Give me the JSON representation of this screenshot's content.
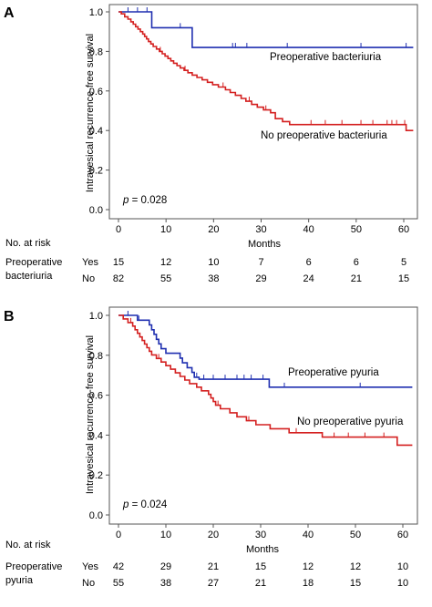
{
  "chart_data": [
    {
      "type": "line",
      "panel_label": "A",
      "ylabel": "Intravesical recurrence-free survival",
      "xlabel": "Months",
      "xlim": [
        0,
        62
      ],
      "ylim": [
        0.0,
        1.05
      ],
      "x_ticks": [
        0,
        10,
        20,
        30,
        40,
        50,
        60
      ],
      "y_ticks": [
        "0.0",
        "0.2",
        "0.4",
        "0.6",
        "0.8",
        "1.0"
      ],
      "grid": false,
      "p_label": "p",
      "p_value": "= 0.028",
      "series": [
        {
          "name": "Preoperative bacteriuria",
          "color": "#1f2fb0",
          "steps": [
            [
              0,
              1.0
            ],
            [
              7,
              0.92
            ],
            [
              15.5,
              0.82
            ],
            [
              62,
              0.82
            ]
          ],
          "censored": [
            [
              2,
              1.0
            ],
            [
              4,
              1.0
            ],
            [
              6,
              1.0
            ],
            [
              13,
              0.92
            ],
            [
              24,
              0.82
            ],
            [
              24.6,
              0.82
            ],
            [
              27,
              0.82
            ],
            [
              35.5,
              0.82
            ],
            [
              51,
              0.82
            ],
            [
              60.5,
              0.82
            ]
          ]
        },
        {
          "name": "No preoperative bacteriuria",
          "color": "#d42020",
          "steps": [
            [
              0,
              1.0
            ],
            [
              0.6,
              0.99
            ],
            [
              1.3,
              0.975
            ],
            [
              2,
              0.963
            ],
            [
              2.6,
              0.95
            ],
            [
              3.1,
              0.938
            ],
            [
              3.6,
              0.925
            ],
            [
              4.1,
              0.913
            ],
            [
              4.6,
              0.9
            ],
            [
              5.1,
              0.888
            ],
            [
              5.5,
              0.875
            ],
            [
              5.9,
              0.863
            ],
            [
              6.3,
              0.85
            ],
            [
              6.8,
              0.838
            ],
            [
              7.3,
              0.825
            ],
            [
              8,
              0.812
            ],
            [
              8.6,
              0.8
            ],
            [
              9.2,
              0.788
            ],
            [
              9.8,
              0.776
            ],
            [
              10.4,
              0.764
            ],
            [
              11,
              0.752
            ],
            [
              11.6,
              0.74
            ],
            [
              12.3,
              0.728
            ],
            [
              13,
              0.716
            ],
            [
              13.8,
              0.704
            ],
            [
              14.6,
              0.692
            ],
            [
              15.5,
              0.68
            ],
            [
              16.5,
              0.668
            ],
            [
              17.6,
              0.656
            ],
            [
              18.7,
              0.644
            ],
            [
              19.8,
              0.632
            ],
            [
              21,
              0.62
            ],
            [
              22.5,
              0.606
            ],
            [
              23.5,
              0.592
            ],
            [
              24.6,
              0.578
            ],
            [
              25.8,
              0.562
            ],
            [
              26.8,
              0.548
            ],
            [
              28,
              0.532
            ],
            [
              29.2,
              0.518
            ],
            [
              30.5,
              0.504
            ],
            [
              32,
              0.49
            ],
            [
              33,
              0.46
            ],
            [
              34.5,
              0.445
            ],
            [
              36,
              0.43
            ],
            [
              60.5,
              0.43
            ],
            [
              60.5,
              0.4
            ],
            [
              62,
              0.4
            ]
          ],
          "censored": [
            [
              8.8,
              0.8
            ],
            [
              14,
              0.704
            ],
            [
              22,
              0.62
            ],
            [
              27.5,
              0.548
            ],
            [
              31,
              0.504
            ],
            [
              40.5,
              0.43
            ],
            [
              43.5,
              0.43
            ],
            [
              47,
              0.43
            ],
            [
              51,
              0.43
            ],
            [
              53.5,
              0.43
            ],
            [
              56.5,
              0.43
            ],
            [
              57.5,
              0.43
            ],
            [
              58.5,
              0.43
            ],
            [
              60.2,
              0.43
            ]
          ]
        }
      ],
      "risk_table": {
        "header": "No. at risk",
        "group_label_lines": [
          "Preoperative",
          "bacteriuria"
        ],
        "rows": [
          {
            "label": "Yes",
            "values": [
              "15",
              "12",
              "10",
              "7",
              "6",
              "6",
              "5"
            ]
          },
          {
            "label": "No",
            "values": [
              "82",
              "55",
              "38",
              "29",
              "24",
              "21",
              "15"
            ]
          }
        ]
      }
    },
    {
      "type": "line",
      "panel_label": "B",
      "ylabel": "Intravesical recurrence-free survival",
      "xlabel": "Months",
      "xlim": [
        0,
        62
      ],
      "ylim": [
        0.0,
        1.05
      ],
      "x_ticks": [
        0,
        10,
        20,
        30,
        40,
        50,
        60
      ],
      "y_ticks": [
        "0.0",
        "0.2",
        "0.4",
        "0.6",
        "0.8",
        "1.0"
      ],
      "grid": false,
      "p_label": "p",
      "p_value": "= 0.024",
      "series": [
        {
          "name": "Preoperative pyuria",
          "color": "#1f2fb0",
          "steps": [
            [
              0,
              1.0
            ],
            [
              4,
              0.976
            ],
            [
              6.5,
              0.952
            ],
            [
              7,
              0.928
            ],
            [
              7.5,
              0.905
            ],
            [
              8,
              0.88
            ],
            [
              8.5,
              0.857
            ],
            [
              9,
              0.833
            ],
            [
              10,
              0.81
            ],
            [
              13,
              0.786
            ],
            [
              13.5,
              0.762
            ],
            [
              14.5,
              0.738
            ],
            [
              15.5,
              0.714
            ],
            [
              16,
              0.69
            ],
            [
              17,
              0.68
            ],
            [
              31.8,
              0.68
            ],
            [
              31.8,
              0.64
            ],
            [
              62,
              0.64
            ]
          ],
          "censored": [
            [
              2,
              1.0
            ],
            [
              4.3,
              0.976
            ],
            [
              16.5,
              0.69
            ],
            [
              18,
              0.68
            ],
            [
              20,
              0.68
            ],
            [
              22.5,
              0.68
            ],
            [
              25,
              0.68
            ],
            [
              26.5,
              0.68
            ],
            [
              28,
              0.68
            ],
            [
              30.5,
              0.68
            ],
            [
              35,
              0.64
            ],
            [
              51,
              0.64
            ]
          ]
        },
        {
          "name": "No preoperative pyuria",
          "color": "#d42020",
          "steps": [
            [
              0,
              1.0
            ],
            [
              1,
              0.982
            ],
            [
              2,
              0.964
            ],
            [
              3,
              0.946
            ],
            [
              3.5,
              0.928
            ],
            [
              4,
              0.91
            ],
            [
              4.5,
              0.892
            ],
            [
              5,
              0.874
            ],
            [
              5.5,
              0.856
            ],
            [
              6,
              0.838
            ],
            [
              6.5,
              0.82
            ],
            [
              7,
              0.802
            ],
            [
              8,
              0.784
            ],
            [
              9,
              0.766
            ],
            [
              10,
              0.748
            ],
            [
              11,
              0.73
            ],
            [
              12,
              0.712
            ],
            [
              13,
              0.694
            ],
            [
              14,
              0.676
            ],
            [
              15,
              0.658
            ],
            [
              16.5,
              0.64
            ],
            [
              17.5,
              0.622
            ],
            [
              19,
              0.604
            ],
            [
              19.5,
              0.586
            ],
            [
              20,
              0.568
            ],
            [
              20.5,
              0.55
            ],
            [
              21.5,
              0.532
            ],
            [
              23.5,
              0.512
            ],
            [
              25,
              0.492
            ],
            [
              27,
              0.472
            ],
            [
              29,
              0.452
            ],
            [
              32,
              0.432
            ],
            [
              36,
              0.412
            ],
            [
              43,
              0.39
            ],
            [
              58.8,
              0.39
            ],
            [
              58.8,
              0.35
            ],
            [
              62,
              0.35
            ]
          ],
          "censored": [
            [
              2.6,
              0.964
            ],
            [
              8.5,
              0.784
            ],
            [
              21,
              0.55
            ],
            [
              27.5,
              0.472
            ],
            [
              37.5,
              0.412
            ],
            [
              45.5,
              0.39
            ],
            [
              48.5,
              0.39
            ],
            [
              52,
              0.39
            ],
            [
              56,
              0.39
            ]
          ]
        }
      ],
      "risk_table": {
        "header": "No. at risk",
        "group_label_lines": [
          "Preoperative",
          "pyuria"
        ],
        "rows": [
          {
            "label": "Yes",
            "values": [
              "42",
              "29",
              "21",
              "15",
              "12",
              "12",
              "10"
            ]
          },
          {
            "label": "No",
            "values": [
              "55",
              "38",
              "27",
              "21",
              "18",
              "15",
              "10"
            ]
          }
        ]
      }
    }
  ]
}
